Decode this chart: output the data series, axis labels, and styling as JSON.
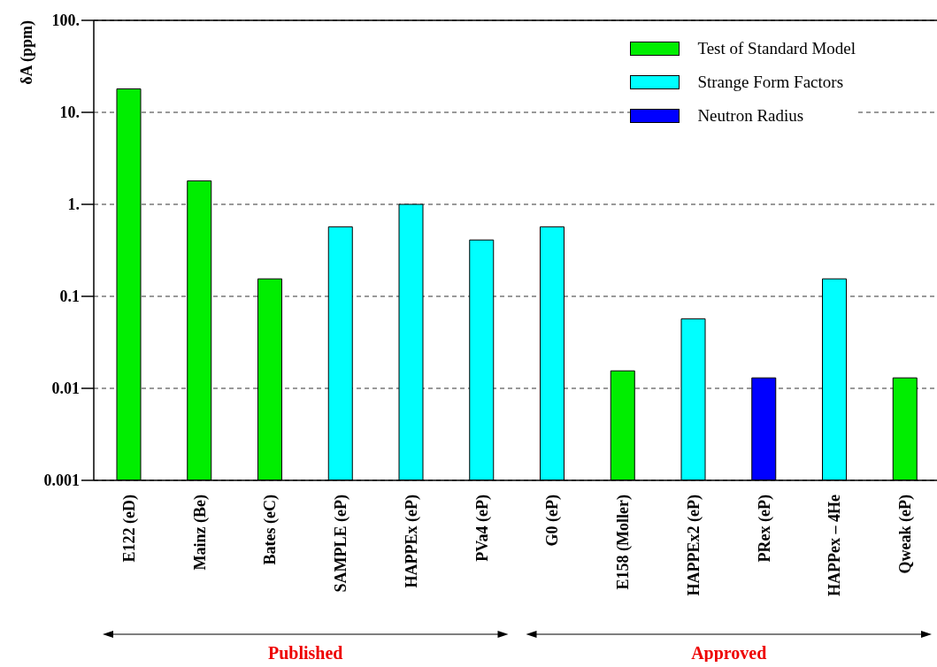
{
  "chart_data": {
    "type": "bar",
    "ylabel": "δA (ppm)",
    "categories": [
      "E122 (eD)",
      "Mainz (Be)",
      "Bates (eC)",
      "SAMPLE (eP)",
      "HAPPEx (eP)",
      "PVa4 (eP)",
      "G0 (eP)",
      "E158 (Moller)",
      "HAPPEx2 (eP)",
      "PRex (eP)",
      "HAPPex – 4He",
      "Qweak (eP)"
    ],
    "series": [
      {
        "name": "Test of Standard Model",
        "color": "#00ee00",
        "values": [
          18,
          1.8,
          0.155,
          null,
          null,
          null,
          null,
          0.0155,
          null,
          null,
          null,
          0.013
        ]
      },
      {
        "name": "Strange Form Factors",
        "color": "#00ffff",
        "values": [
          null,
          null,
          null,
          0.57,
          1,
          0.41,
          0.57,
          null,
          0.057,
          null,
          0.155,
          null
        ]
      },
      {
        "name": "Neutron Radius",
        "color": "#0000ff",
        "values": [
          null,
          null,
          null,
          null,
          null,
          null,
          null,
          null,
          null,
          0.013,
          null,
          null
        ]
      }
    ],
    "log": true,
    "ylim": [
      0.001,
      100
    ],
    "yticks": [
      {
        "value": 0.001,
        "label": "0.001"
      },
      {
        "value": 0.01,
        "label": "0.01"
      },
      {
        "value": 0.1,
        "label": "0.1"
      },
      {
        "value": 1,
        "label": "1."
      },
      {
        "value": 10,
        "label": "10."
      },
      {
        "value": 100,
        "label": "100."
      }
    ],
    "grid": "y",
    "legend": "top right",
    "annotations": [
      "Published",
      "Approved"
    ]
  }
}
